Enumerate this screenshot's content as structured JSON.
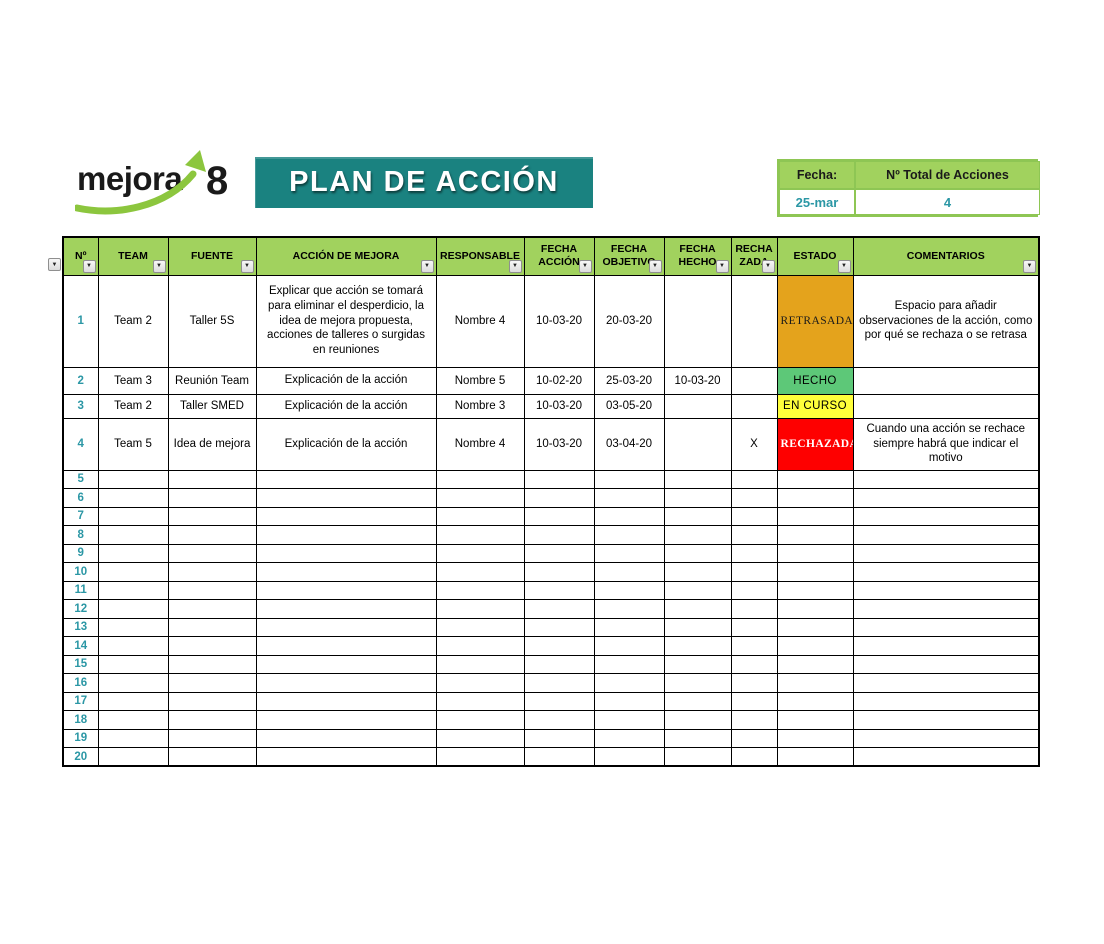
{
  "logo": {
    "text": "mejora",
    "number": "8"
  },
  "banner": {
    "title": "PLAN DE ACCIÓN"
  },
  "summary": {
    "fecha_label": "Fecha:",
    "total_label": "Nº Total de Acciones",
    "fecha_value": "25-mar",
    "total_value": "4"
  },
  "colors": {
    "banner_bg": "#1A8280",
    "header_green": "#A1D25E",
    "accent_teal": "#2B97A5",
    "box_border_green": "#8EC654",
    "logo_arrow_green": "#8CC63E"
  },
  "table": {
    "filter_icon": "▼",
    "columns": [
      {
        "key": "num",
        "label": "Nº"
      },
      {
        "key": "team",
        "label": "TEAM"
      },
      {
        "key": "fuente",
        "label": "FUENTE"
      },
      {
        "key": "accion",
        "label": "ACCIÓN DE MEJORA"
      },
      {
        "key": "responsable",
        "label": "RESPONSABLE"
      },
      {
        "key": "fecha_accion",
        "label": "FECHA ACCIÓN"
      },
      {
        "key": "fecha_objetivo",
        "label": "FECHA OBJETIVO"
      },
      {
        "key": "fecha_hecho",
        "label": "FECHA HECHO"
      },
      {
        "key": "rechazada",
        "label": "RECHAZADA"
      },
      {
        "key": "estado",
        "label": "ESTADO"
      },
      {
        "key": "comentarios",
        "label": "COMENTARIOS"
      }
    ],
    "estado_styles": {
      "RETRASADA": {
        "bg": "#E4A31C",
        "fg": "#1a1a1a",
        "serif": true,
        "bold": false
      },
      "HECHO": {
        "bg": "#5DC878",
        "fg": "#000000",
        "serif": false,
        "bold": false
      },
      "EN CURSO": {
        "bg": "#FFFF3B",
        "fg": "#000000",
        "serif": false,
        "bold": false
      },
      "RECHAZADA": {
        "bg": "#FE0000",
        "fg": "#FFFFFF",
        "serif": true,
        "bold": true
      }
    },
    "rows": [
      {
        "num": "1",
        "team": "Team 2",
        "fuente": "Taller 5S",
        "accion": "Explicar que acción se tomará para eliminar el desperdicio, la idea de mejora propuesta, acciones de talleres o surgidas en reuniones",
        "responsable": "Nombre 4",
        "fecha_accion": "10-03-20",
        "fecha_objetivo": "20-03-20",
        "fecha_hecho": "",
        "rechazada": "",
        "estado": "RETRASADA",
        "comentarios": "Espacio para añadir observaciones de la acción, como por qué se rechaza o se retrasa"
      },
      {
        "num": "2",
        "team": "Team 3",
        "fuente": "Reunión Team",
        "accion": "Explicación de la acción",
        "responsable": "Nombre 5",
        "fecha_accion": "10-02-20",
        "fecha_objetivo": "25-03-20",
        "fecha_hecho": "10-03-20",
        "rechazada": "",
        "estado": "HECHO",
        "comentarios": ""
      },
      {
        "num": "3",
        "team": "Team 2",
        "fuente": "Taller SMED",
        "accion": "Explicación de la acción",
        "responsable": "Nombre 3",
        "fecha_accion": "10-03-20",
        "fecha_objetivo": "03-05-20",
        "fecha_hecho": "",
        "rechazada": "",
        "estado": "EN CURSO",
        "comentarios": ""
      },
      {
        "num": "4",
        "team": "Team 5",
        "fuente": "Idea de mejora",
        "accion": "Explicación de la acción",
        "responsable": "Nombre 4",
        "fecha_accion": "10-03-20",
        "fecha_objetivo": "03-04-20",
        "fecha_hecho": "",
        "rechazada": "X",
        "estado": "RECHAZADA",
        "comentarios": "Cuando una acción se rechace siempre habrá que indicar el motivo"
      },
      {
        "num": "5"
      },
      {
        "num": "6"
      },
      {
        "num": "7"
      },
      {
        "num": "8"
      },
      {
        "num": "9"
      },
      {
        "num": "10"
      },
      {
        "num": "11"
      },
      {
        "num": "12"
      },
      {
        "num": "13"
      },
      {
        "num": "14"
      },
      {
        "num": "15"
      },
      {
        "num": "16"
      },
      {
        "num": "17"
      },
      {
        "num": "18"
      },
      {
        "num": "19"
      },
      {
        "num": "20"
      }
    ]
  }
}
